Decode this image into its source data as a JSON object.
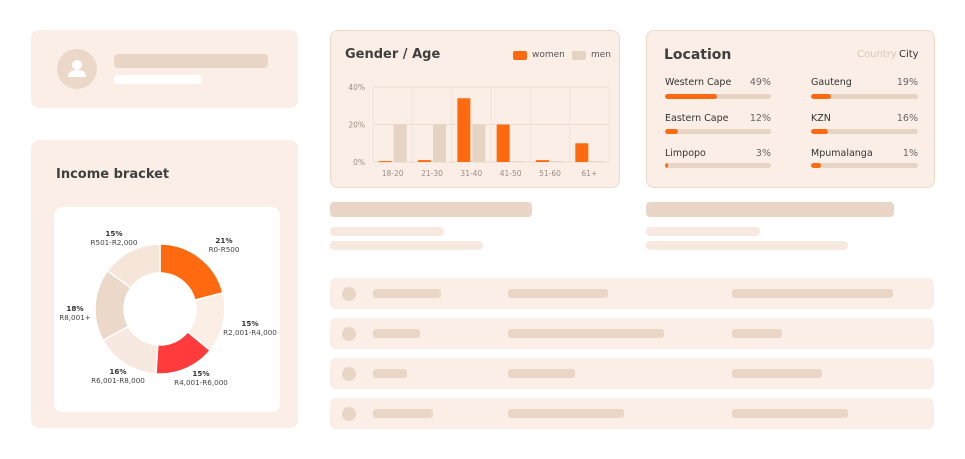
{
  "income": {
    "title": "Income bracket"
  },
  "gender_age": {
    "title": "Gender / Age",
    "legend_women": "women",
    "legend_men": "men",
    "colors": {
      "women": "#ff6a10",
      "men": "#e5d3c4"
    }
  },
  "location": {
    "title": "Location",
    "toggle_country": "Country",
    "toggle_city": "City",
    "items": [
      {
        "name": "Western Cape",
        "pct": "49%",
        "value": 49
      },
      {
        "name": "Gauteng",
        "pct": "19%",
        "value": 19
      },
      {
        "name": "Eastern Cape",
        "pct": "12%",
        "value": 12
      },
      {
        "name": "KZN",
        "pct": "16%",
        "value": 16
      },
      {
        "name": "Limpopo",
        "pct": "3%",
        "value": 3
      },
      {
        "name": "Mpumalanga",
        "pct": "1%",
        "value": 1
      }
    ]
  },
  "chart_data": [
    {
      "type": "bar",
      "title": "Gender / Age",
      "categories": [
        "18-20",
        "21-30",
        "31-40",
        "41-50",
        "51-60",
        "61+"
      ],
      "yticks": [
        "0%",
        "20%",
        "40%"
      ],
      "ylim": [
        0,
        40
      ],
      "series": [
        {
          "name": "women",
          "values": [
            0.5,
            1,
            34,
            20,
            1,
            10
          ]
        },
        {
          "name": "men",
          "values": [
            20,
            20,
            20,
            0.5,
            0.5,
            0.5
          ]
        }
      ],
      "legend": "top-right",
      "grid": true
    },
    {
      "type": "pie",
      "title": "Income bracket",
      "slices": [
        {
          "pct": "21%",
          "label": "R0-R500",
          "value": 21,
          "color": "#ff6a10"
        },
        {
          "pct": "15%",
          "label": "R2,001-R4,000",
          "value": 15,
          "color": "#fbeee5"
        },
        {
          "pct": "15%",
          "label": "R4,001-R6,000",
          "value": 15,
          "color": "#ff3b3b"
        },
        {
          "pct": "16%",
          "label": "R6,001-R8,000",
          "value": 16,
          "color": "#f7e9df"
        },
        {
          "pct": "18%",
          "label": "R8,001+",
          "value": 18,
          "color": "#ecd8c8"
        },
        {
          "pct": "15%",
          "label": "R501-R2,000",
          "value": 15,
          "color": "#f6e6da"
        }
      ]
    }
  ]
}
